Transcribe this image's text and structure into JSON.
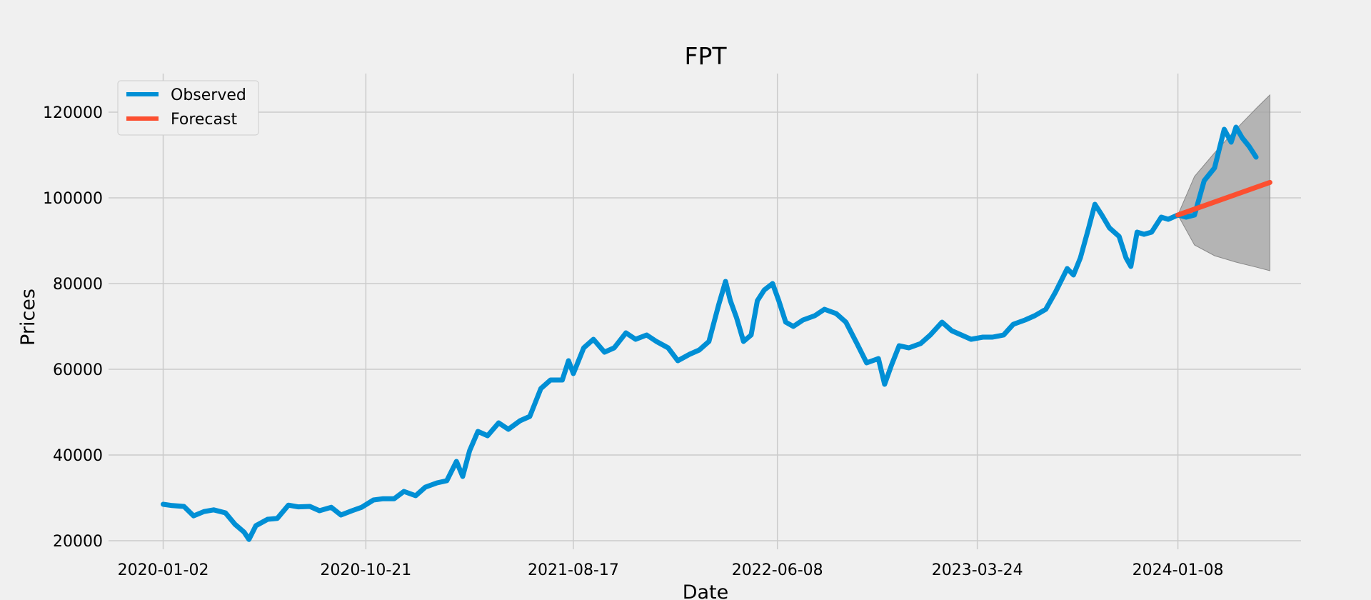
{
  "colors": {
    "background": "#f0f0f0",
    "grid": "#cbcbcb",
    "observed": "#008fd5",
    "forecast": "#fc4f30",
    "confidence_band": "#a0a0a0"
  },
  "chart_data": {
    "type": "line",
    "title": "FPT",
    "xlabel": "Date",
    "ylabel": "Prices",
    "x_type": "date",
    "xlim": [
      "2019-10-15",
      "2024-07-04"
    ],
    "ylim": [
      18000,
      129000
    ],
    "yticks": [
      20000,
      40000,
      60000,
      80000,
      100000,
      120000
    ],
    "yticklabels": [
      "20000",
      "40000",
      "60000",
      "80000",
      "100000",
      "120000"
    ],
    "xticks": [
      "2020-01-02",
      "2020-10-21",
      "2021-08-17",
      "2022-06-08",
      "2023-03-24",
      "2024-01-08"
    ],
    "grid": true,
    "legend": {
      "position": "top-left",
      "entries": [
        "Observed",
        "Forecast"
      ]
    },
    "series": [
      {
        "name": "Observed",
        "color": "#008fd5",
        "points": [
          [
            "2020-01-02",
            28500
          ],
          [
            "2020-01-15",
            28200
          ],
          [
            "2020-02-01",
            28000
          ],
          [
            "2020-02-15",
            25800
          ],
          [
            "2020-03-01",
            26800
          ],
          [
            "2020-03-15",
            27200
          ],
          [
            "2020-04-01",
            26500
          ],
          [
            "2020-04-15",
            23800
          ],
          [
            "2020-04-28",
            22000
          ],
          [
            "2020-05-05",
            20300
          ],
          [
            "2020-05-15",
            23500
          ],
          [
            "2020-06-01",
            25000
          ],
          [
            "2020-06-15",
            25200
          ],
          [
            "2020-07-01",
            28300
          ],
          [
            "2020-07-15",
            27900
          ],
          [
            "2020-08-01",
            28000
          ],
          [
            "2020-08-15",
            27000
          ],
          [
            "2020-09-01",
            27800
          ],
          [
            "2020-09-15",
            26000
          ],
          [
            "2020-10-01",
            27000
          ],
          [
            "2020-10-15",
            27800
          ],
          [
            "2020-11-01",
            29500
          ],
          [
            "2020-11-15",
            29800
          ],
          [
            "2020-12-01",
            29800
          ],
          [
            "2020-12-15",
            31500
          ],
          [
            "2021-01-01",
            30500
          ],
          [
            "2021-01-15",
            32500
          ],
          [
            "2021-02-01",
            33500
          ],
          [
            "2021-02-15",
            34000
          ],
          [
            "2021-03-01",
            38500
          ],
          [
            "2021-03-10",
            35000
          ],
          [
            "2021-03-20",
            41000
          ],
          [
            "2021-04-01",
            45500
          ],
          [
            "2021-04-15",
            44500
          ],
          [
            "2021-05-01",
            47500
          ],
          [
            "2021-05-15",
            46000
          ],
          [
            "2021-06-01",
            48000
          ],
          [
            "2021-06-15",
            49000
          ],
          [
            "2021-07-01",
            55500
          ],
          [
            "2021-07-15",
            57500
          ],
          [
            "2021-08-01",
            57500
          ],
          [
            "2021-08-10",
            62000
          ],
          [
            "2021-08-17",
            59000
          ],
          [
            "2021-09-01",
            65000
          ],
          [
            "2021-09-15",
            67000
          ],
          [
            "2021-10-01",
            64000
          ],
          [
            "2021-10-15",
            65000
          ],
          [
            "2021-11-01",
            68500
          ],
          [
            "2021-11-15",
            67000
          ],
          [
            "2021-12-01",
            68000
          ],
          [
            "2021-12-15",
            66500
          ],
          [
            "2022-01-01",
            65000
          ],
          [
            "2022-01-15",
            62000
          ],
          [
            "2022-02-01",
            63500
          ],
          [
            "2022-02-15",
            64500
          ],
          [
            "2022-03-01",
            66500
          ],
          [
            "2022-03-15",
            75000
          ],
          [
            "2022-03-25",
            80500
          ],
          [
            "2022-04-01",
            76000
          ],
          [
            "2022-04-10",
            72000
          ],
          [
            "2022-04-20",
            66500
          ],
          [
            "2022-05-01",
            68000
          ],
          [
            "2022-05-10",
            76000
          ],
          [
            "2022-05-20",
            78500
          ],
          [
            "2022-06-01",
            80000
          ],
          [
            "2022-06-10",
            76000
          ],
          [
            "2022-06-20",
            71000
          ],
          [
            "2022-07-01",
            70000
          ],
          [
            "2022-07-15",
            71500
          ],
          [
            "2022-08-01",
            72500
          ],
          [
            "2022-08-15",
            74000
          ],
          [
            "2022-09-01",
            73000
          ],
          [
            "2022-09-15",
            71000
          ],
          [
            "2022-10-01",
            66000
          ],
          [
            "2022-10-15",
            61500
          ],
          [
            "2022-11-01",
            62500
          ],
          [
            "2022-11-10",
            56500
          ],
          [
            "2022-11-20",
            61000
          ],
          [
            "2022-12-01",
            65500
          ],
          [
            "2022-12-15",
            65000
          ],
          [
            "2023-01-01",
            66000
          ],
          [
            "2023-01-15",
            68000
          ],
          [
            "2023-02-01",
            71000
          ],
          [
            "2023-02-15",
            69000
          ],
          [
            "2023-03-01",
            68000
          ],
          [
            "2023-03-15",
            67000
          ],
          [
            "2023-04-01",
            67500
          ],
          [
            "2023-04-15",
            67500
          ],
          [
            "2023-05-01",
            68000
          ],
          [
            "2023-05-15",
            70500
          ],
          [
            "2023-06-01",
            71500
          ],
          [
            "2023-06-15",
            72500
          ],
          [
            "2023-07-01",
            74000
          ],
          [
            "2023-07-15",
            78000
          ],
          [
            "2023-08-01",
            83500
          ],
          [
            "2023-08-10",
            82000
          ],
          [
            "2023-08-20",
            86000
          ],
          [
            "2023-09-01",
            93000
          ],
          [
            "2023-09-10",
            98500
          ],
          [
            "2023-09-20",
            96000
          ],
          [
            "2023-10-01",
            93000
          ],
          [
            "2023-10-15",
            91000
          ],
          [
            "2023-10-25",
            86000
          ],
          [
            "2023-11-01",
            84000
          ],
          [
            "2023-11-10",
            92000
          ],
          [
            "2023-11-20",
            91500
          ],
          [
            "2023-12-01",
            92000
          ],
          [
            "2023-12-15",
            95500
          ],
          [
            "2023-12-25",
            95000
          ],
          [
            "2024-01-08",
            96000
          ],
          [
            "2024-01-20",
            95500
          ],
          [
            "2024-02-01",
            96000
          ],
          [
            "2024-02-15",
            104000
          ],
          [
            "2024-03-01",
            107000
          ],
          [
            "2024-03-15",
            116000
          ],
          [
            "2024-03-25",
            113000
          ],
          [
            "2024-04-01",
            116500
          ],
          [
            "2024-04-10",
            114000
          ],
          [
            "2024-04-20",
            112000
          ],
          [
            "2024-04-30",
            109500
          ]
        ]
      },
      {
        "name": "Forecast",
        "color": "#fc4f30",
        "points": [
          [
            "2024-01-08",
            96000
          ],
          [
            "2024-05-20",
            103600
          ]
        ]
      }
    ],
    "confidence_band": {
      "x": [
        "2024-01-08",
        "2024-02-01",
        "2024-03-01",
        "2024-04-01",
        "2024-05-01",
        "2024-05-20"
      ],
      "lower": [
        96000,
        89000,
        86500,
        85000,
        83800,
        83000
      ],
      "upper": [
        96000,
        105000,
        110500,
        116000,
        121000,
        124000
      ]
    }
  }
}
